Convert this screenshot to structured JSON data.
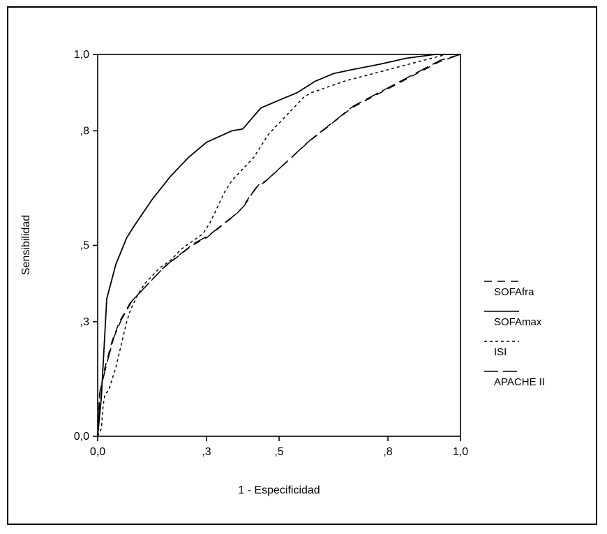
{
  "figure": {
    "background": "#ffffff",
    "frame_color": "#000000"
  },
  "chart_data": {
    "type": "line",
    "title": "",
    "xlabel": "1 - Especificidad",
    "ylabel": "Sensibilidad",
    "xlim": [
      0,
      1
    ],
    "ylim": [
      0,
      1
    ],
    "grid": false,
    "legend_position": "right-outside",
    "line_color": "#000000",
    "xticks": {
      "values": [
        0,
        0.3,
        0.5,
        0.8,
        1.0
      ],
      "labels": [
        "0,0",
        ",3",
        ",5",
        ",8",
        "1,0"
      ]
    },
    "yticks": {
      "values": [
        0,
        0.3,
        0.5,
        0.8,
        1.0
      ],
      "labels": [
        "0,0",
        ",3",
        ",5",
        ",8",
        "1,0"
      ]
    },
    "series": [
      {
        "name": "SOFAfra",
        "dash": "11 8",
        "points": [
          [
            0,
            0
          ],
          [
            0.005,
            0.11
          ],
          [
            0.02,
            0.18
          ],
          [
            0.04,
            0.25
          ],
          [
            0.06,
            0.3
          ],
          [
            0.09,
            0.35
          ],
          [
            0.12,
            0.38
          ],
          [
            0.15,
            0.41
          ],
          [
            0.18,
            0.44
          ],
          [
            0.22,
            0.47
          ],
          [
            0.26,
            0.5
          ],
          [
            0.3,
            0.52
          ],
          [
            0.34,
            0.55
          ],
          [
            0.38,
            0.58
          ],
          [
            0.4,
            0.6
          ],
          [
            0.42,
            0.63
          ],
          [
            0.44,
            0.655
          ],
          [
            0.46,
            0.665
          ],
          [
            0.5,
            0.7
          ],
          [
            0.54,
            0.735
          ],
          [
            0.58,
            0.77
          ],
          [
            0.62,
            0.8
          ],
          [
            0.66,
            0.83
          ],
          [
            0.7,
            0.86
          ],
          [
            0.74,
            0.88
          ],
          [
            0.78,
            0.9
          ],
          [
            0.82,
            0.92
          ],
          [
            0.86,
            0.94
          ],
          [
            0.9,
            0.96
          ],
          [
            0.94,
            0.98
          ],
          [
            1,
            1
          ]
        ]
      },
      {
        "name": "SOFAmax",
        "dash": "",
        "points": [
          [
            0,
            0
          ],
          [
            0.01,
            0.1
          ],
          [
            0.025,
            0.36
          ],
          [
            0.05,
            0.45
          ],
          [
            0.08,
            0.52
          ],
          [
            0.1,
            0.55
          ],
          [
            0.15,
            0.62
          ],
          [
            0.2,
            0.68
          ],
          [
            0.25,
            0.73
          ],
          [
            0.3,
            0.77
          ],
          [
            0.37,
            0.8
          ],
          [
            0.4,
            0.805
          ],
          [
            0.45,
            0.86
          ],
          [
            0.5,
            0.88
          ],
          [
            0.55,
            0.9
          ],
          [
            0.6,
            0.93
          ],
          [
            0.65,
            0.95
          ],
          [
            0.7,
            0.96
          ],
          [
            0.78,
            0.975
          ],
          [
            0.85,
            0.99
          ],
          [
            0.93,
            1
          ],
          [
            1,
            1
          ]
        ]
      },
      {
        "name": "ISI",
        "dash": "4 4",
        "points": [
          [
            0,
            0
          ],
          [
            0.01,
            0.02
          ],
          [
            0.015,
            0.08
          ],
          [
            0.02,
            0.11
          ],
          [
            0.03,
            0.12
          ],
          [
            0.05,
            0.18
          ],
          [
            0.06,
            0.22
          ],
          [
            0.07,
            0.26
          ],
          [
            0.08,
            0.3
          ],
          [
            0.09,
            0.33
          ],
          [
            0.11,
            0.37
          ],
          [
            0.13,
            0.4
          ],
          [
            0.15,
            0.42
          ],
          [
            0.17,
            0.44
          ],
          [
            0.2,
            0.46
          ],
          [
            0.23,
            0.49
          ],
          [
            0.26,
            0.51
          ],
          [
            0.29,
            0.53
          ],
          [
            0.31,
            0.56
          ],
          [
            0.33,
            0.6
          ],
          [
            0.35,
            0.64
          ],
          [
            0.37,
            0.67
          ],
          [
            0.39,
            0.69
          ],
          [
            0.41,
            0.71
          ],
          [
            0.43,
            0.73
          ],
          [
            0.45,
            0.76
          ],
          [
            0.47,
            0.79
          ],
          [
            0.49,
            0.81
          ],
          [
            0.51,
            0.83
          ],
          [
            0.53,
            0.85
          ],
          [
            0.55,
            0.87
          ],
          [
            0.57,
            0.89
          ],
          [
            0.59,
            0.9
          ],
          [
            0.62,
            0.91
          ],
          [
            0.65,
            0.92
          ],
          [
            0.68,
            0.93
          ],
          [
            0.72,
            0.94
          ],
          [
            0.76,
            0.95
          ],
          [
            0.8,
            0.96
          ],
          [
            0.84,
            0.97
          ],
          [
            0.88,
            0.98
          ],
          [
            0.92,
            0.99
          ],
          [
            0.96,
            1
          ],
          [
            1,
            1
          ]
        ]
      },
      {
        "name": "APACHE II",
        "dash": "20 7",
        "points": [
          [
            0,
            0
          ],
          [
            0.007,
            0.12
          ],
          [
            0.025,
            0.19
          ],
          [
            0.045,
            0.26
          ],
          [
            0.065,
            0.305
          ],
          [
            0.095,
            0.355
          ],
          [
            0.125,
            0.385
          ],
          [
            0.155,
            0.415
          ],
          [
            0.185,
            0.445
          ],
          [
            0.225,
            0.475
          ],
          [
            0.265,
            0.505
          ],
          [
            0.305,
            0.525
          ],
          [
            0.345,
            0.555
          ],
          [
            0.385,
            0.585
          ],
          [
            0.405,
            0.605
          ],
          [
            0.425,
            0.635
          ],
          [
            0.445,
            0.66
          ],
          [
            0.465,
            0.67
          ],
          [
            0.505,
            0.705
          ],
          [
            0.545,
            0.74
          ],
          [
            0.585,
            0.775
          ],
          [
            0.625,
            0.805
          ],
          [
            0.665,
            0.835
          ],
          [
            0.705,
            0.865
          ],
          [
            0.745,
            0.885
          ],
          [
            0.785,
            0.905
          ],
          [
            0.825,
            0.925
          ],
          [
            0.865,
            0.945
          ],
          [
            0.905,
            0.965
          ],
          [
            0.945,
            0.985
          ],
          [
            1,
            1
          ]
        ]
      }
    ]
  }
}
